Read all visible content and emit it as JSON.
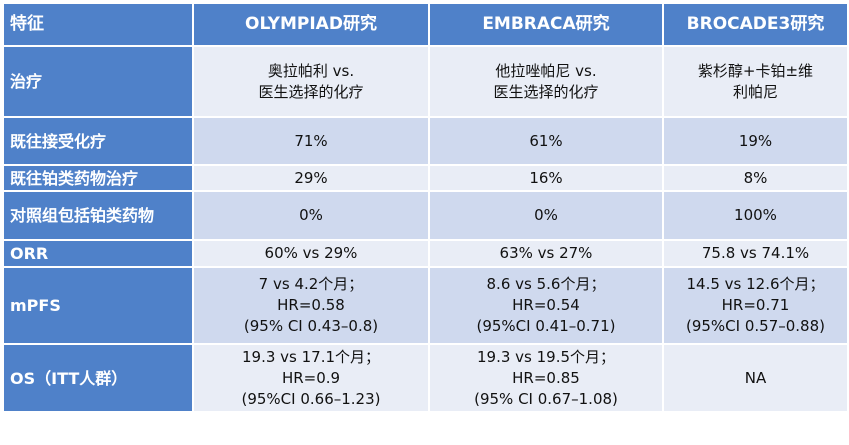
{
  "table": {
    "header": [
      "特征",
      "OLYMPIAD研究",
      "EMBRACA研究",
      "BROCADE3研究"
    ],
    "rows": [
      {
        "label": "治疗",
        "cells": [
          [
            "奥拉帕利 vs.",
            "医生选择的化疗"
          ],
          [
            "他拉唑帕尼 vs.",
            "医生选择的化疗"
          ],
          [
            "紫杉醇+卡铂±维",
            "利帕尼"
          ]
        ]
      },
      {
        "label": "既往接受化疗",
        "cells": [
          [
            "71%"
          ],
          [
            "61%"
          ],
          [
            "19%"
          ]
        ]
      },
      {
        "label": "既往铂类药物治疗",
        "cells": [
          [
            "29%"
          ],
          [
            "16%"
          ],
          [
            "8%"
          ]
        ]
      },
      {
        "label": "对照组包括铂类药物",
        "cells": [
          [
            "0%"
          ],
          [
            "0%"
          ],
          [
            "100%"
          ]
        ]
      },
      {
        "label": "ORR",
        "cells": [
          [
            "60% vs 29%"
          ],
          [
            "63% vs 27%"
          ],
          [
            "75.8 vs 74.1%"
          ]
        ]
      },
      {
        "label": "mPFS",
        "cells": [
          [
            "7 vs 4.2个月；",
            "HR=0.58",
            "(95% CI 0.43–0.8)"
          ],
          [
            "8.6 vs 5.6个月；",
            "HR=0.54",
            "(95%CI 0.41–0.71)"
          ],
          [
            "14.5 vs 12.6个月；",
            "HR=0.71",
            "(95%CI 0.57–0.88)"
          ]
        ]
      },
      {
        "label": "OS（ITT人群）",
        "cells": [
          [
            "19.3 vs 17.1个月；",
            "HR=0.9",
            "(95%CI 0.66–1.23)"
          ],
          [
            "19.3 vs 19.5个月；",
            "HR=0.85",
            "(95% CI 0.67–1.08)"
          ],
          [
            "NA"
          ]
        ]
      }
    ]
  }
}
